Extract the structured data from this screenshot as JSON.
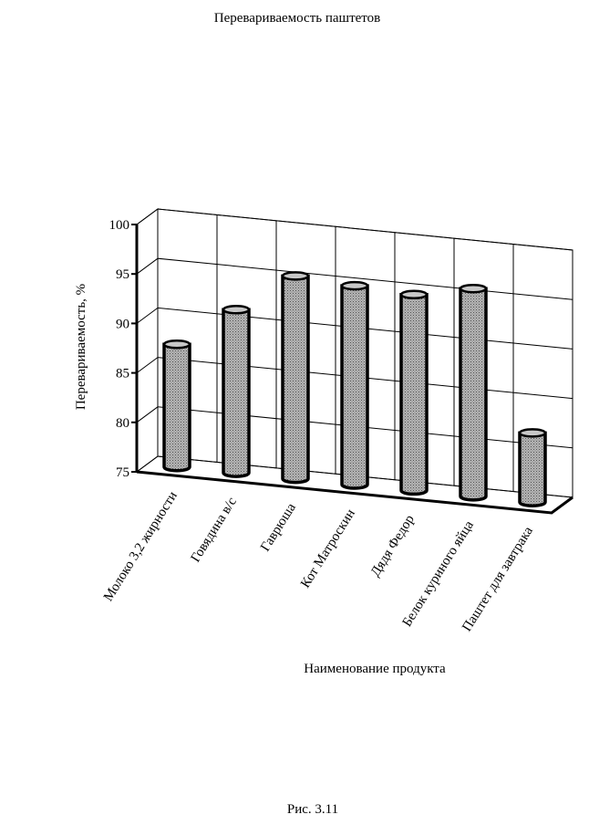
{
  "chart_data": {
    "type": "bar3d",
    "title": "Перевариваемость паштетов",
    "y_label": "Перевариваемость, %",
    "x_label": "Наименование продукта",
    "caption": "Рис. 3.11",
    "categories": [
      "Молоко 3,2 жирности",
      "Говядина в/с",
      "Гаврюша",
      "Кот Матроскин",
      "Дядя Федор",
      "Белок куриного яйца",
      "Паштет для завтрака"
    ],
    "values": [
      87.4,
      91.5,
      95.5,
      95.1,
      94.8,
      96.0,
      82.0
    ],
    "color": "#a8a8a8",
    "ylim": [
      75,
      100
    ],
    "yticks": [
      75,
      80,
      85,
      90,
      95,
      100
    ],
    "grid": true
  }
}
